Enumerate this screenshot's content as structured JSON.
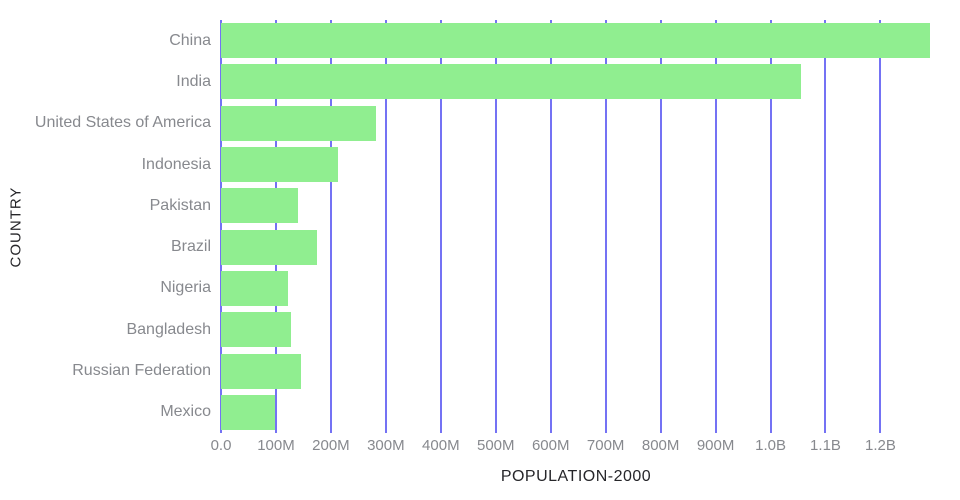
{
  "colors": {
    "background": "#ffffff",
    "bar_fill": "#90ee90",
    "gridline": "#7472f4",
    "tick_label_text": "#87898e",
    "country_label_text": "#87898e",
    "axis_title_text": "#26262a"
  },
  "chart_data": {
    "type": "bar",
    "orientation": "horizontal",
    "title": "",
    "xlabel": "POPULATION-2000",
    "ylabel": "COUNTRY",
    "categories": [
      "China",
      "India",
      "United States of America",
      "Indonesia",
      "Pakistan",
      "Brazil",
      "Nigeria",
      "Bangladesh",
      "Russian Federation",
      "Mexico"
    ],
    "values_millions": [
      1290,
      1056,
      282,
      212,
      141,
      174,
      122,
      127,
      146,
      98
    ],
    "unit": "people",
    "x_axis": {
      "min_millions": 0,
      "max_millions": 1292,
      "tick_step_millions": 100,
      "tick_values_millions": [
        0,
        100,
        200,
        300,
        400,
        500,
        600,
        700,
        800,
        900,
        1000,
        1100,
        1200
      ],
      "tick_labels": [
        "0.0",
        "100M",
        "200M",
        "300M",
        "400M",
        "500M",
        "600M",
        "700M",
        "800M",
        "900M",
        "1.0B",
        "1.1B",
        "1.2B"
      ]
    },
    "grid": "vertical-gridlines-behind-bars",
    "legend": false
  }
}
